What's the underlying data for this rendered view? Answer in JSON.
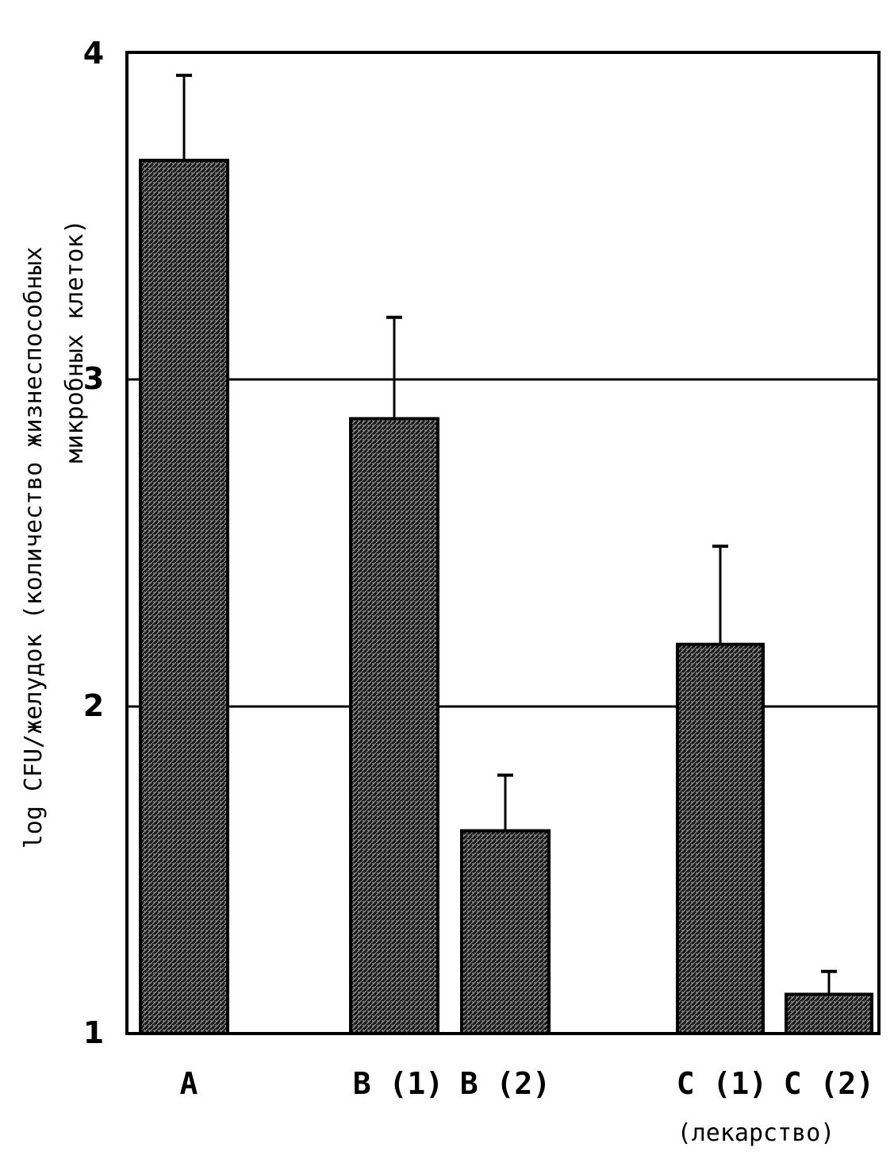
{
  "chart_data": {
    "type": "bar",
    "categories": [
      "A",
      "B (1)",
      "B (2)",
      "C (1)",
      "C (2)"
    ],
    "values": [
      3.67,
      2.88,
      1.62,
      2.19,
      1.12
    ],
    "error_upper": [
      3.93,
      3.19,
      1.79,
      2.49,
      1.19
    ],
    "ylabel_line1": "log CFU/желудок (количество жизнеспособных",
    "ylabel_line2": "микробных                    клеток)",
    "yticks": [
      1,
      2,
      3,
      4
    ],
    "ylim": [
      1,
      4
    ],
    "grid": true,
    "annotation": "(лекарство)",
    "bar_color": "#2b2b2b"
  }
}
